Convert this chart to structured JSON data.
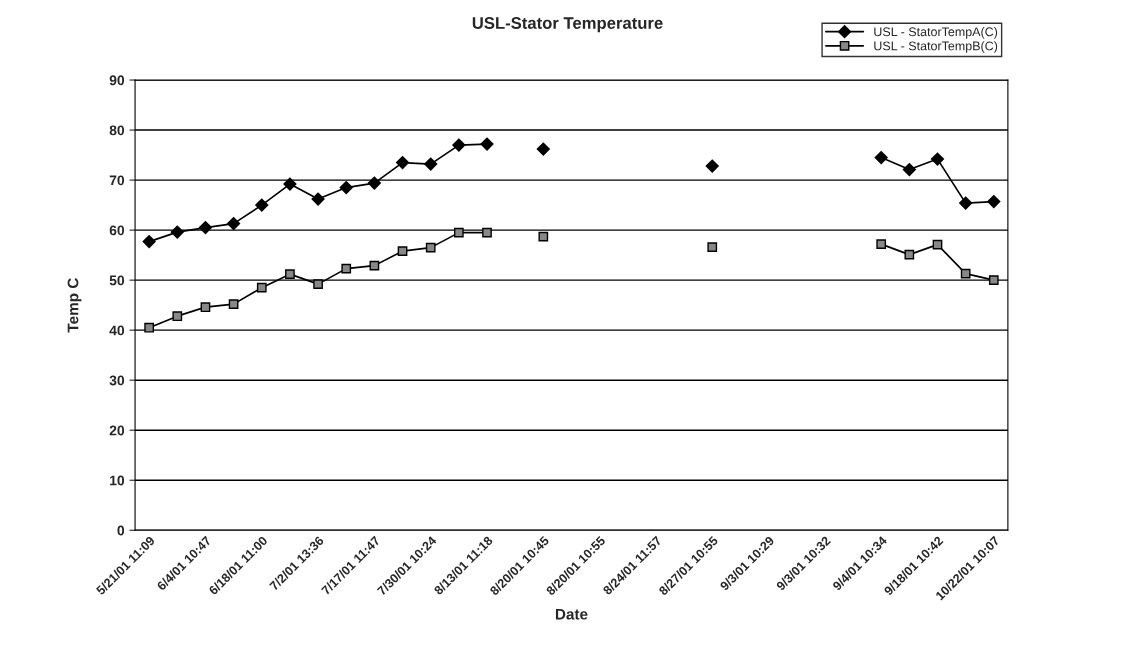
{
  "chart_data": {
    "type": "line",
    "title": "USL-Stator Temperature",
    "xlabel": "Date",
    "ylabel": "Temp C",
    "categories": [
      "5/21/01 11:09",
      null,
      "6/4/01 10:47",
      null,
      "6/18/01 11:00",
      null,
      "7/2/01 13:36",
      null,
      "7/17/01 11:47",
      null,
      "7/30/01 10:24",
      null,
      "8/13/01 11:18",
      null,
      "8/20/01 10:45",
      null,
      "8/20/01 10:55",
      null,
      "8/24/01 11:57",
      null,
      "8/27/01 10:55",
      null,
      "9/3/01 10:29",
      null,
      "9/3/01 10:32",
      null,
      "9/4/01 10:34",
      null,
      "9/18/01 10:42",
      null,
      "10/22/01 10:07"
    ],
    "series": [
      {
        "name": "USL - StatorTempA(C)",
        "color": "#000000",
        "marker": "diamond",
        "values": [
          57.7,
          59.6,
          60.5,
          61.3,
          65.0,
          69.2,
          66.2,
          68.5,
          69.4,
          73.5,
          73.2,
          77.0,
          77.2,
          null,
          76.2,
          null,
          null,
          null,
          null,
          null,
          72.8,
          null,
          null,
          null,
          null,
          null,
          74.5,
          72.1,
          74.2,
          65.4,
          65.7
        ]
      },
      {
        "name": "USL - StatorTempB(C)",
        "color": "#000000",
        "marker": "square",
        "values": [
          40.5,
          42.8,
          44.6,
          45.2,
          48.5,
          51.2,
          49.2,
          52.3,
          52.9,
          55.8,
          56.5,
          59.5,
          59.5,
          null,
          58.7,
          null,
          null,
          null,
          null,
          null,
          56.6,
          null,
          null,
          null,
          null,
          null,
          57.2,
          55.1,
          57.1,
          51.3,
          50.0
        ]
      }
    ],
    "ylim": [
      0,
      90
    ],
    "yticks": [
      0,
      10,
      20,
      30,
      40,
      50,
      60,
      70,
      80,
      90
    ],
    "grid": "y",
    "legend": "top right",
    "line_style": "solid"
  }
}
